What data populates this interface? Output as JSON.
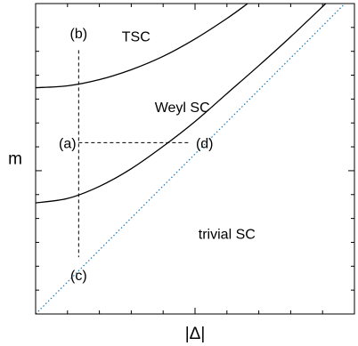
{
  "chart_data": {
    "type": "line",
    "xlabel": "|Δ|",
    "ylabel": "m",
    "x_ticks": 10,
    "y_ticks": 13,
    "x_range": [
      0,
      1
    ],
    "y_range": [
      0,
      1
    ],
    "series": [
      {
        "role": "upper-boundary",
        "style": "solid",
        "color": "#000000",
        "points": [
          [
            0,
            0.729
          ],
          [
            0.1,
            0.735
          ],
          [
            0.2,
            0.755
          ],
          [
            0.3,
            0.787
          ],
          [
            0.4,
            0.83
          ],
          [
            0.5,
            0.886
          ],
          [
            0.6,
            0.952
          ],
          [
            0.665,
            1.0
          ]
        ]
      },
      {
        "role": "lower-boundary",
        "style": "solid",
        "color": "#000000",
        "points": [
          [
            0,
            0.358
          ],
          [
            0.1,
            0.372
          ],
          [
            0.2,
            0.411
          ],
          [
            0.3,
            0.468
          ],
          [
            0.4,
            0.54
          ],
          [
            0.5,
            0.62
          ],
          [
            0.6,
            0.71
          ],
          [
            0.7,
            0.8
          ],
          [
            0.8,
            0.893
          ],
          [
            0.91,
            1.0
          ]
        ]
      },
      {
        "role": "asymptote",
        "style": "dotted",
        "color": "#1f77b4",
        "points": [
          [
            0,
            0
          ],
          [
            0.97,
            1.0
          ]
        ]
      }
    ],
    "cuts": [
      {
        "style": "dashed",
        "from": [
          0.135,
          0.85
        ],
        "to": [
          0.135,
          0.183
        ]
      },
      {
        "style": "dashed",
        "from": [
          0.135,
          0.552
        ],
        "to": [
          0.485,
          0.552
        ]
      }
    ],
    "annotations": [
      {
        "text": "(b)",
        "x": 0.135,
        "y": 0.905
      },
      {
        "text": "TSC",
        "x": 0.315,
        "y": 0.895
      },
      {
        "text": "Weyl SC",
        "x": 0.46,
        "y": 0.668
      },
      {
        "text": "(a)",
        "x": 0.1,
        "y": 0.552
      },
      {
        "text": "(d)",
        "x": 0.53,
        "y": 0.552
      },
      {
        "text": "trivial SC",
        "x": 0.6,
        "y": 0.26
      },
      {
        "text": "(c)",
        "x": 0.135,
        "y": 0.126
      }
    ]
  }
}
